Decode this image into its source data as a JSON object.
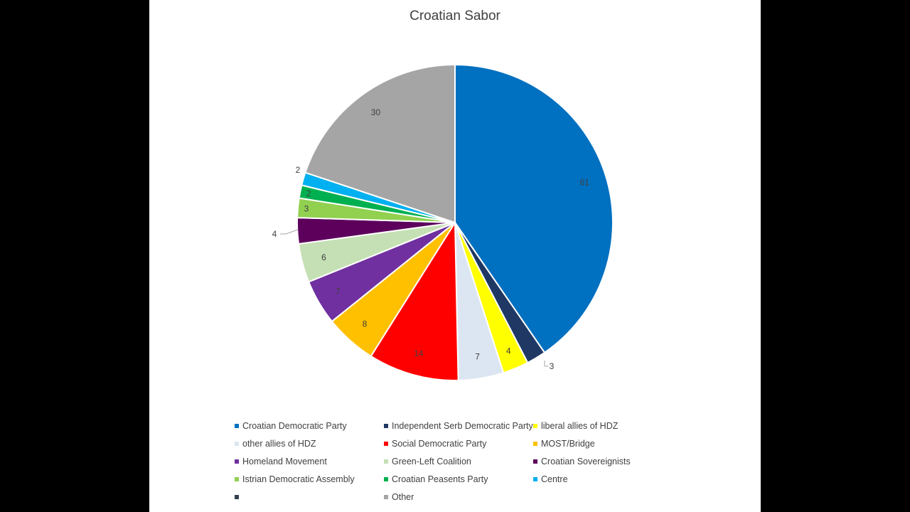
{
  "chart_data": {
    "type": "pie",
    "title": "Croatian Sabor",
    "total": 151,
    "slices": [
      {
        "label": "Croatian Democratic Party",
        "value": 61,
        "color": "#0070c0"
      },
      {
        "label": "Independent Serb Democratic Party",
        "value": 3,
        "color": "#1f3864"
      },
      {
        "label": "liberal allies of HDZ",
        "value": 4,
        "color": "#ffff00"
      },
      {
        "label": "other allies of HDZ",
        "value": 7,
        "color": "#dce6f2"
      },
      {
        "label": "Social Democratic Party",
        "value": 14,
        "color": "#ff0000"
      },
      {
        "label": "MOST/Bridge",
        "value": 8,
        "color": "#ffc000"
      },
      {
        "label": "Homeland Movement",
        "value": 7,
        "color": "#7030a0"
      },
      {
        "label": "Green-Left Coalition",
        "value": 6,
        "color": "#c5e0b4"
      },
      {
        "label": "Croatian Sovereignists",
        "value": 4,
        "color": "#5c005c"
      },
      {
        "label": "Istrian Democratic Assembly",
        "value": 3,
        "color": "#92d050"
      },
      {
        "label": "Croatian Peasents Party",
        "value": 2,
        "color": "#00b050"
      },
      {
        "label": "Centre",
        "value": 2,
        "color": "#00b0f0"
      },
      {
        "label": "",
        "value": 0,
        "color": "#333f50"
      },
      {
        "label": "Other",
        "value": 30,
        "color": "#a5a5a5"
      }
    ],
    "legend_position": "bottom"
  }
}
